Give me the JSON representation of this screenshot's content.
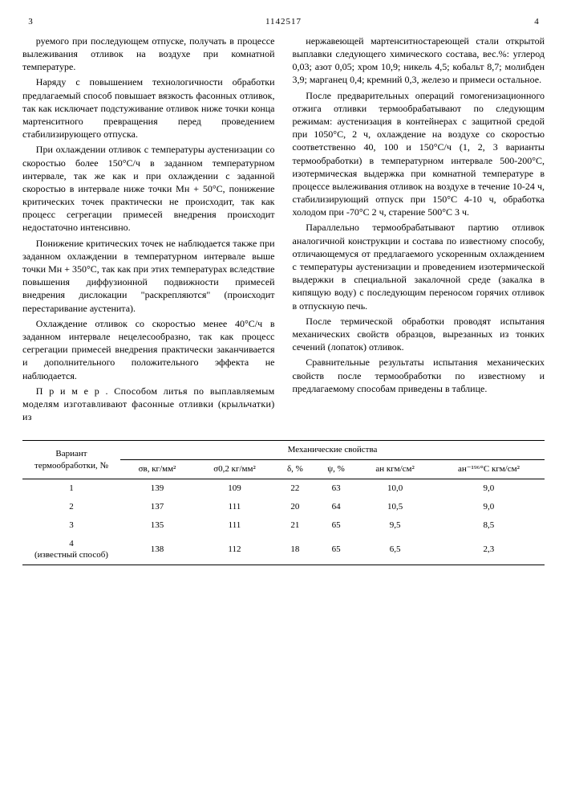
{
  "header": {
    "page_left": "3",
    "patent_no": "1142517",
    "page_right": "4"
  },
  "left": {
    "p1": "руемого при последующем отпуске, получать в процессе вылеживания отливок на воздухе при комнатной температуре.",
    "p2": "Наряду с повышением технологичности обработки предлагаемый способ повышает вязкость фасонных отливок, так как исключает подстуживание отливок ниже точки конца мартенситного превращения перед проведением стабилизирующего отпуска.",
    "p3": "При охлаждении отливок с температуры аустенизации со скоростью более 150°С/ч в заданном температурном интервале, так же как и при охлаждении с заданной скоростью в интервале ниже точки Mн + 50°С, понижение критических точек практически не происходит, так как процесс сегрегации примесей внедрения происходит недостаточно интенсивно.",
    "p4": "Понижение критических точек не наблюдается также при заданном охлаждении в температурном интервале выше точки Mн + 350°С, так как при этих температурах вследствие повышения диффузионной подвижности примесей внедрения дислокации \"раскрепляются\" (происходит перестаривание аустенита).",
    "p5": "Охлаждение отливок со скоростью менее 40°С/ч в заданном интервале нецелесообразно, так как процесс сегрегации примесей внедрения практически заканчивается и дополнительного положительного эффекта не наблюдается.",
    "p6": "П р и м е р . Способом литья по выплавляемым моделям изготавливают фасонные отливки (крыльчатки) из"
  },
  "right": {
    "p1": "нержавеющей мартенситностареющей стали открытой выплавки следующего химического состава, вес.%: углерод 0,03; азот 0,05; хром 10,9; никель 4,5; кобальт 8,7; молибден 3,9; марганец 0,4; кремний 0,3, железо и примеси остальное.",
    "p2": "После предварительных операций гомогенизационного отжига отливки термообрабатывают по следующим режимам: аустенизация в контейнерах с защитной средой при 1050°С, 2 ч, охлаждение на воздухе со скоростью соответственно 40, 100 и 150°С/ч (1, 2, 3 варианты термообработки) в температурном интервале 500-200°С, изотермическая выдержка при комнатной температуре в процессе вылеживания отливок на воздухе в течение 10-24 ч, стабилизирующий отпуск при 150°С 4-10 ч, обработка холодом при -70°С 2 ч, старение 500°С 3 ч.",
    "p3": "Параллельно термообрабатывают партию отливок аналогичной конструкции и состава по известному способу, отличающемуся от предлагаемого ускоренным охлаждением с температуры аустенизации и проведением изотермической выдержки в специальной закалочной среде (закалка в кипящую воду) с последующим переносом горячих отливок в отпускную печь.",
    "p4": "После термической обработки проводят испытания механических свойств образцов, вырезанных из тонких сечений (лопаток) отливок.",
    "p5": "Сравнительные результаты испытания механических свойств после термообработки по известному и предлагаемому способам приведены в таблице."
  },
  "line_markers_left": [
    "5",
    "10",
    "15",
    "20",
    "25",
    "30",
    "35",
    "40"
  ],
  "table": {
    "head": {
      "variant": "Вариант термообработки, №",
      "mech": "Механические свойства",
      "cols": [
        "σв, кг/мм²",
        "σ0,2 кг/мм²",
        "δ, %",
        "ψ, %",
        "aн кгм/см²",
        "aн⁻¹⁹⁶°С кгм/см²"
      ]
    },
    "rows": [
      {
        "v": "1",
        "c": [
          "139",
          "109",
          "22",
          "63",
          "10,0",
          "9,0"
        ]
      },
      {
        "v": "2",
        "c": [
          "137",
          "111",
          "20",
          "64",
          "10,5",
          "9,0"
        ]
      },
      {
        "v": "3",
        "c": [
          "135",
          "111",
          "21",
          "65",
          "9,5",
          "8,5"
        ]
      },
      {
        "v": "4\n(известный способ)",
        "c": [
          "138",
          "112",
          "18",
          "65",
          "6,5",
          "2,3"
        ]
      }
    ]
  },
  "style": {
    "body_font_size": 12,
    "table_font_size": 11,
    "text_color": "#000000",
    "background": "#ffffff",
    "rule_color": "#000000"
  }
}
